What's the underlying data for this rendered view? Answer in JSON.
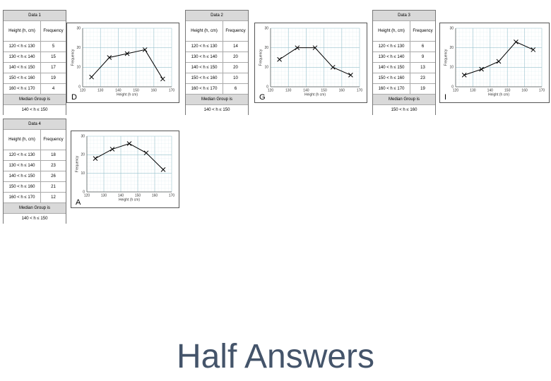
{
  "tables": [
    {
      "title": "Data 1",
      "headers": [
        "Height (h, cm)",
        "Frequency"
      ],
      "rows": [
        [
          "120 < h ≤ 130",
          5
        ],
        [
          "130 < h ≤ 140",
          15
        ],
        [
          "140 < h ≤ 150",
          17
        ],
        [
          "150 < h ≤ 160",
          19
        ],
        [
          "160 < h ≤ 170",
          4
        ]
      ],
      "median_label": "Median Group is",
      "median": "140 < h ≤ 150"
    },
    {
      "title": "Data 2",
      "headers": [
        "Height (h, cm)",
        "Frequency"
      ],
      "rows": [
        [
          "120 < h ≤ 130",
          14
        ],
        [
          "130 < h ≤ 140",
          20
        ],
        [
          "140 < h ≤ 150",
          20
        ],
        [
          "150 < h ≤ 160",
          10
        ],
        [
          "160 < h ≤ 170",
          6
        ]
      ],
      "median_label": "Median Group is",
      "median": "140 < h ≤ 150"
    },
    {
      "title": "Data 3",
      "headers": [
        "Height (h, cm)",
        "Frequency"
      ],
      "rows": [
        [
          "120 < h ≤ 130",
          6
        ],
        [
          "130 < h ≤ 140",
          9
        ],
        [
          "140 < h ≤ 150",
          13
        ],
        [
          "150 < h ≤ 160",
          23
        ],
        [
          "160 < h ≤ 170",
          19
        ]
      ],
      "median_label": "Median Group is",
      "median": "150 < h ≤ 160"
    },
    {
      "title": "Data 4",
      "headers": [
        "Height (h, cm)",
        "Frequency"
      ],
      "rows": [
        [
          "120 < h ≤ 130",
          18
        ],
        [
          "130 < h ≤ 140",
          23
        ],
        [
          "140 < h ≤ 150",
          26
        ],
        [
          "150 < h ≤ 160",
          21
        ],
        [
          "160 < h ≤ 170",
          12
        ]
      ],
      "median_label": "Median Group is",
      "median": "140 < h ≤ 150"
    }
  ],
  "chart_data": [
    {
      "type": "line",
      "label": "D",
      "x": [
        125,
        135,
        145,
        155,
        165
      ],
      "values": [
        5,
        15,
        17,
        19,
        4
      ],
      "color": "#000000",
      "xlim": [
        120,
        170
      ],
      "ylim": [
        0,
        30
      ],
      "xticks": [
        120,
        130,
        140,
        150,
        160,
        170
      ],
      "yticks": [
        0,
        10,
        20,
        30
      ],
      "xlabel": "Height (h cm)",
      "ylabel": "Frequency",
      "grid": true
    },
    {
      "type": "line",
      "label": "G",
      "x": [
        125,
        135,
        145,
        155,
        165
      ],
      "values": [
        14,
        20,
        20,
        10,
        6
      ],
      "color": "#000000",
      "xlim": [
        120,
        170
      ],
      "ylim": [
        0,
        30
      ],
      "xticks": [
        120,
        130,
        140,
        150,
        160,
        170
      ],
      "yticks": [
        0,
        10,
        20,
        30
      ],
      "xlabel": "Height (h cm)",
      "ylabel": "Frequency",
      "grid": true
    },
    {
      "type": "line",
      "label": "I",
      "x": [
        125,
        135,
        145,
        155,
        165
      ],
      "values": [
        6,
        9,
        13,
        23,
        19
      ],
      "color": "#000000",
      "xlim": [
        120,
        170
      ],
      "ylim": [
        0,
        30
      ],
      "xticks": [
        120,
        130,
        140,
        150,
        160,
        170
      ],
      "yticks": [
        0,
        10,
        20,
        30
      ],
      "xlabel": "Height (h cm)",
      "ylabel": "Frequency",
      "grid": true
    },
    {
      "type": "line",
      "label": "A",
      "x": [
        125,
        135,
        145,
        155,
        165
      ],
      "values": [
        18,
        23,
        26,
        21,
        12
      ],
      "color": "#000000",
      "xlim": [
        120,
        170
      ],
      "ylim": [
        0,
        30
      ],
      "xticks": [
        120,
        130,
        140,
        150,
        160,
        170
      ],
      "yticks": [
        0,
        10,
        20,
        30
      ],
      "xlabel": "Height (h cm)",
      "ylabel": "Frequency",
      "grid": true
    }
  ],
  "footer": "Half Answers"
}
